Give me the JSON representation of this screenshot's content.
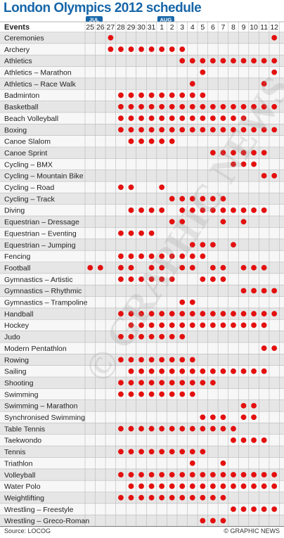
{
  "title": "London Olympics 2012 schedule",
  "footer": {
    "source": "Source: LOCOG",
    "credit": "© GRAPHIC NEWS"
  },
  "watermark": "© GRAPHIC NEWS",
  "colors": {
    "title": "#1766a8",
    "month_badge": "#1766a8",
    "dot": "#e3100f",
    "row_alt": "#e6e6e6",
    "row_base": "#f7f7f7"
  },
  "chart_data": {
    "type": "table",
    "row_header": "Events",
    "month_labels": [
      {
        "label": "JUL",
        "start_day": "25"
      },
      {
        "label": "AUG",
        "start_day": "1"
      }
    ],
    "days": [
      "25",
      "26",
      "27",
      "28",
      "29",
      "30",
      "31",
      "1",
      "2",
      "3",
      "4",
      "5",
      "6",
      "7",
      "8",
      "9",
      "10",
      "11",
      "12"
    ],
    "events": [
      {
        "name": "Ceremonies",
        "days": [
          "27",
          "12"
        ]
      },
      {
        "name": "Archery",
        "days": [
          "27",
          "28",
          "29",
          "30",
          "31",
          "1",
          "2",
          "3"
        ]
      },
      {
        "name": "Athletics",
        "days": [
          "3",
          "4",
          "5",
          "6",
          "7",
          "8",
          "9",
          "10",
          "11",
          "12"
        ]
      },
      {
        "name": "Athletics – Marathon",
        "days": [
          "5",
          "12"
        ]
      },
      {
        "name": "Athletics – Race Walk",
        "days": [
          "4",
          "11"
        ]
      },
      {
        "name": "Badminton",
        "days": [
          "28",
          "29",
          "30",
          "31",
          "1",
          "2",
          "3",
          "4",
          "5"
        ]
      },
      {
        "name": "Basketball",
        "days": [
          "28",
          "29",
          "30",
          "31",
          "1",
          "2",
          "3",
          "4",
          "5",
          "6",
          "7",
          "8",
          "9",
          "10",
          "11",
          "12"
        ]
      },
      {
        "name": "Beach Volleyball",
        "days": [
          "28",
          "29",
          "30",
          "31",
          "1",
          "2",
          "3",
          "4",
          "5",
          "6",
          "7",
          "8",
          "9"
        ]
      },
      {
        "name": "Boxing",
        "days": [
          "28",
          "29",
          "30",
          "31",
          "1",
          "2",
          "3",
          "4",
          "5",
          "6",
          "7",
          "8",
          "9",
          "10",
          "11",
          "12"
        ]
      },
      {
        "name": "Canoe Slalom",
        "days": [
          "29",
          "30",
          "31",
          "1",
          "2"
        ]
      },
      {
        "name": "Canoe Sprint",
        "days": [
          "6",
          "7",
          "8",
          "9",
          "10",
          "11"
        ]
      },
      {
        "name": "Cycling – BMX",
        "days": [
          "8",
          "9",
          "10"
        ]
      },
      {
        "name": "Cycling – Mountain Bike",
        "days": [
          "11",
          "12"
        ]
      },
      {
        "name": "Cycling – Road",
        "days": [
          "28",
          "29",
          "1"
        ]
      },
      {
        "name": "Cycling – Track",
        "days": [
          "2",
          "3",
          "4",
          "5",
          "6",
          "7"
        ]
      },
      {
        "name": "Diving",
        "days": [
          "29",
          "30",
          "31",
          "1",
          "3",
          "4",
          "5",
          "6",
          "7",
          "8",
          "9",
          "10",
          "11"
        ]
      },
      {
        "name": "Equestrian – Dressage",
        "days": [
          "2",
          "3",
          "7",
          "9"
        ]
      },
      {
        "name": "Equestrian – Eventing",
        "days": [
          "28",
          "29",
          "30",
          "31"
        ]
      },
      {
        "name": "Equestrian – Jumping",
        "days": [
          "4",
          "5",
          "6",
          "8"
        ]
      },
      {
        "name": "Fencing",
        "days": [
          "28",
          "29",
          "30",
          "31",
          "1",
          "2",
          "3",
          "4",
          "5"
        ]
      },
      {
        "name": "Football",
        "days": [
          "25",
          "26",
          "28",
          "29",
          "31",
          "1",
          "3",
          "4",
          "6",
          "7",
          "9",
          "10",
          "11"
        ]
      },
      {
        "name": "Gymnastics – Artistic",
        "days": [
          "28",
          "29",
          "30",
          "31",
          "1",
          "2",
          "5",
          "6",
          "7"
        ]
      },
      {
        "name": "Gymnastics – Rhythmic",
        "days": [
          "9",
          "10",
          "11",
          "12"
        ]
      },
      {
        "name": "Gymnastics – Trampoline",
        "days": [
          "3",
          "4"
        ]
      },
      {
        "name": "Handball",
        "days": [
          "28",
          "29",
          "30",
          "31",
          "1",
          "2",
          "3",
          "4",
          "5",
          "6",
          "7",
          "8",
          "9",
          "10",
          "11",
          "12"
        ]
      },
      {
        "name": "Hockey",
        "days": [
          "29",
          "30",
          "31",
          "1",
          "2",
          "3",
          "4",
          "5",
          "6",
          "7",
          "8",
          "9",
          "10",
          "11"
        ]
      },
      {
        "name": "Judo",
        "days": [
          "28",
          "29",
          "30",
          "31",
          "1",
          "2",
          "3"
        ]
      },
      {
        "name": "Modern Pentathlon",
        "days": [
          "11",
          "12"
        ]
      },
      {
        "name": "Rowing",
        "days": [
          "28",
          "29",
          "30",
          "31",
          "1",
          "2",
          "3",
          "4"
        ]
      },
      {
        "name": "Sailing",
        "days": [
          "29",
          "30",
          "31",
          "1",
          "2",
          "3",
          "4",
          "5",
          "6",
          "7",
          "8",
          "9",
          "10",
          "11"
        ]
      },
      {
        "name": "Shooting",
        "days": [
          "28",
          "29",
          "30",
          "31",
          "1",
          "2",
          "3",
          "4",
          "5",
          "6"
        ]
      },
      {
        "name": "Swimming",
        "days": [
          "28",
          "29",
          "30",
          "31",
          "1",
          "2",
          "3",
          "4"
        ]
      },
      {
        "name": "Swimming – Marathon",
        "days": [
          "9",
          "10"
        ]
      },
      {
        "name": "Synchronised Swimming",
        "days": [
          "5",
          "6",
          "7",
          "9",
          "10"
        ]
      },
      {
        "name": "Table Tennis",
        "days": [
          "28",
          "29",
          "30",
          "31",
          "1",
          "2",
          "3",
          "4",
          "5",
          "6",
          "7",
          "8"
        ]
      },
      {
        "name": "Taekwondo",
        "days": [
          "8",
          "9",
          "10",
          "11"
        ]
      },
      {
        "name": "Tennis",
        "days": [
          "28",
          "29",
          "30",
          "31",
          "1",
          "2",
          "3",
          "4",
          "5"
        ]
      },
      {
        "name": "Triathlon",
        "days": [
          "4",
          "7"
        ]
      },
      {
        "name": "Volleyball",
        "days": [
          "28",
          "29",
          "30",
          "31",
          "1",
          "2",
          "3",
          "4",
          "5",
          "6",
          "7",
          "8",
          "9",
          "10",
          "11",
          "12"
        ]
      },
      {
        "name": "Water Polo",
        "days": [
          "29",
          "30",
          "31",
          "1",
          "2",
          "3",
          "4",
          "5",
          "6",
          "7",
          "8",
          "9",
          "10",
          "11",
          "12"
        ]
      },
      {
        "name": "Weightlifting",
        "days": [
          "28",
          "29",
          "30",
          "31",
          "1",
          "2",
          "3",
          "4",
          "5",
          "6",
          "7"
        ]
      },
      {
        "name": "Wrestling – Freestyle",
        "days": [
          "8",
          "9",
          "10",
          "11",
          "12"
        ]
      },
      {
        "name": "Wrestling – Greco-Roman",
        "days": [
          "5",
          "6",
          "7"
        ]
      }
    ]
  }
}
